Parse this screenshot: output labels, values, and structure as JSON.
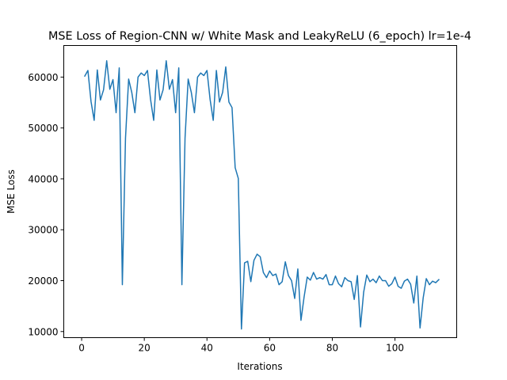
{
  "chart_data": {
    "type": "line",
    "title": "MSE Loss of Region-CNN w/ White Mask and LeakyReLU (6_epoch) lr=1e-4",
    "xlabel": "Iterations",
    "ylabel": "MSE Loss",
    "xlim": [
      -5.7,
      119.7
    ],
    "ylim": [
      8800,
      66200
    ],
    "xticks": [
      0,
      20,
      40,
      60,
      80,
      100
    ],
    "yticks": [
      10000,
      20000,
      30000,
      40000,
      50000,
      60000
    ],
    "grid": false,
    "series": [
      {
        "color": "#1f77b4",
        "x": [
          1,
          2,
          3,
          4,
          5,
          6,
          7,
          8,
          9,
          10,
          11,
          12,
          13,
          14,
          15,
          16,
          17,
          18,
          19,
          20,
          21,
          22,
          23,
          24,
          25,
          26,
          27,
          28,
          29,
          30,
          31,
          32,
          33,
          34,
          35,
          36,
          37,
          38,
          39,
          40,
          41,
          42,
          43,
          44,
          45,
          46,
          47,
          48,
          49,
          50,
          51,
          52,
          53,
          54,
          55,
          56,
          57,
          58,
          59,
          60,
          61,
          62,
          63,
          64,
          65,
          66,
          67,
          68,
          69,
          70,
          71,
          72,
          73,
          74,
          75,
          76,
          77,
          78,
          79,
          80,
          81,
          82,
          83,
          84,
          85,
          86,
          87,
          88,
          89,
          90,
          91,
          92,
          93,
          94,
          95,
          96,
          97,
          98,
          99,
          100,
          101,
          102,
          103,
          104,
          105,
          106,
          107,
          108,
          109,
          110,
          111,
          112,
          113,
          114
        ],
        "y": [
          60200,
          61300,
          55200,
          51500,
          61400,
          55500,
          57500,
          63200,
          57600,
          59500,
          53000,
          61800,
          19200,
          48000,
          59600,
          57000,
          53000,
          60000,
          60800,
          60300,
          61300,
          55600,
          51500,
          61400,
          55500,
          57500,
          63200,
          57600,
          59500,
          53000,
          61800,
          19200,
          48000,
          59600,
          57000,
          53000,
          60000,
          60800,
          60300,
          61300,
          55600,
          51500,
          61300,
          55100,
          57000,
          62000,
          55100,
          54000,
          42200,
          40100,
          10500,
          23500,
          23800,
          19800,
          24000,
          25200,
          24700,
          21600,
          20600,
          21900,
          21000,
          21300,
          19200,
          19800,
          23700,
          21000,
          20000,
          16500,
          22300,
          12200,
          16800,
          20700,
          20100,
          21600,
          20300,
          20600,
          20300,
          21200,
          19200,
          19200,
          20900,
          19400,
          18800,
          20600,
          20000,
          19800,
          16300,
          21000,
          10900,
          17700,
          21100,
          19800,
          20300,
          19600,
          20900,
          20000,
          20000,
          18900,
          19400,
          20700,
          18900,
          18500,
          19900,
          20300,
          19300,
          15600,
          20900,
          10700,
          16600,
          20400,
          19200,
          19900,
          19600,
          20200
        ]
      }
    ]
  }
}
